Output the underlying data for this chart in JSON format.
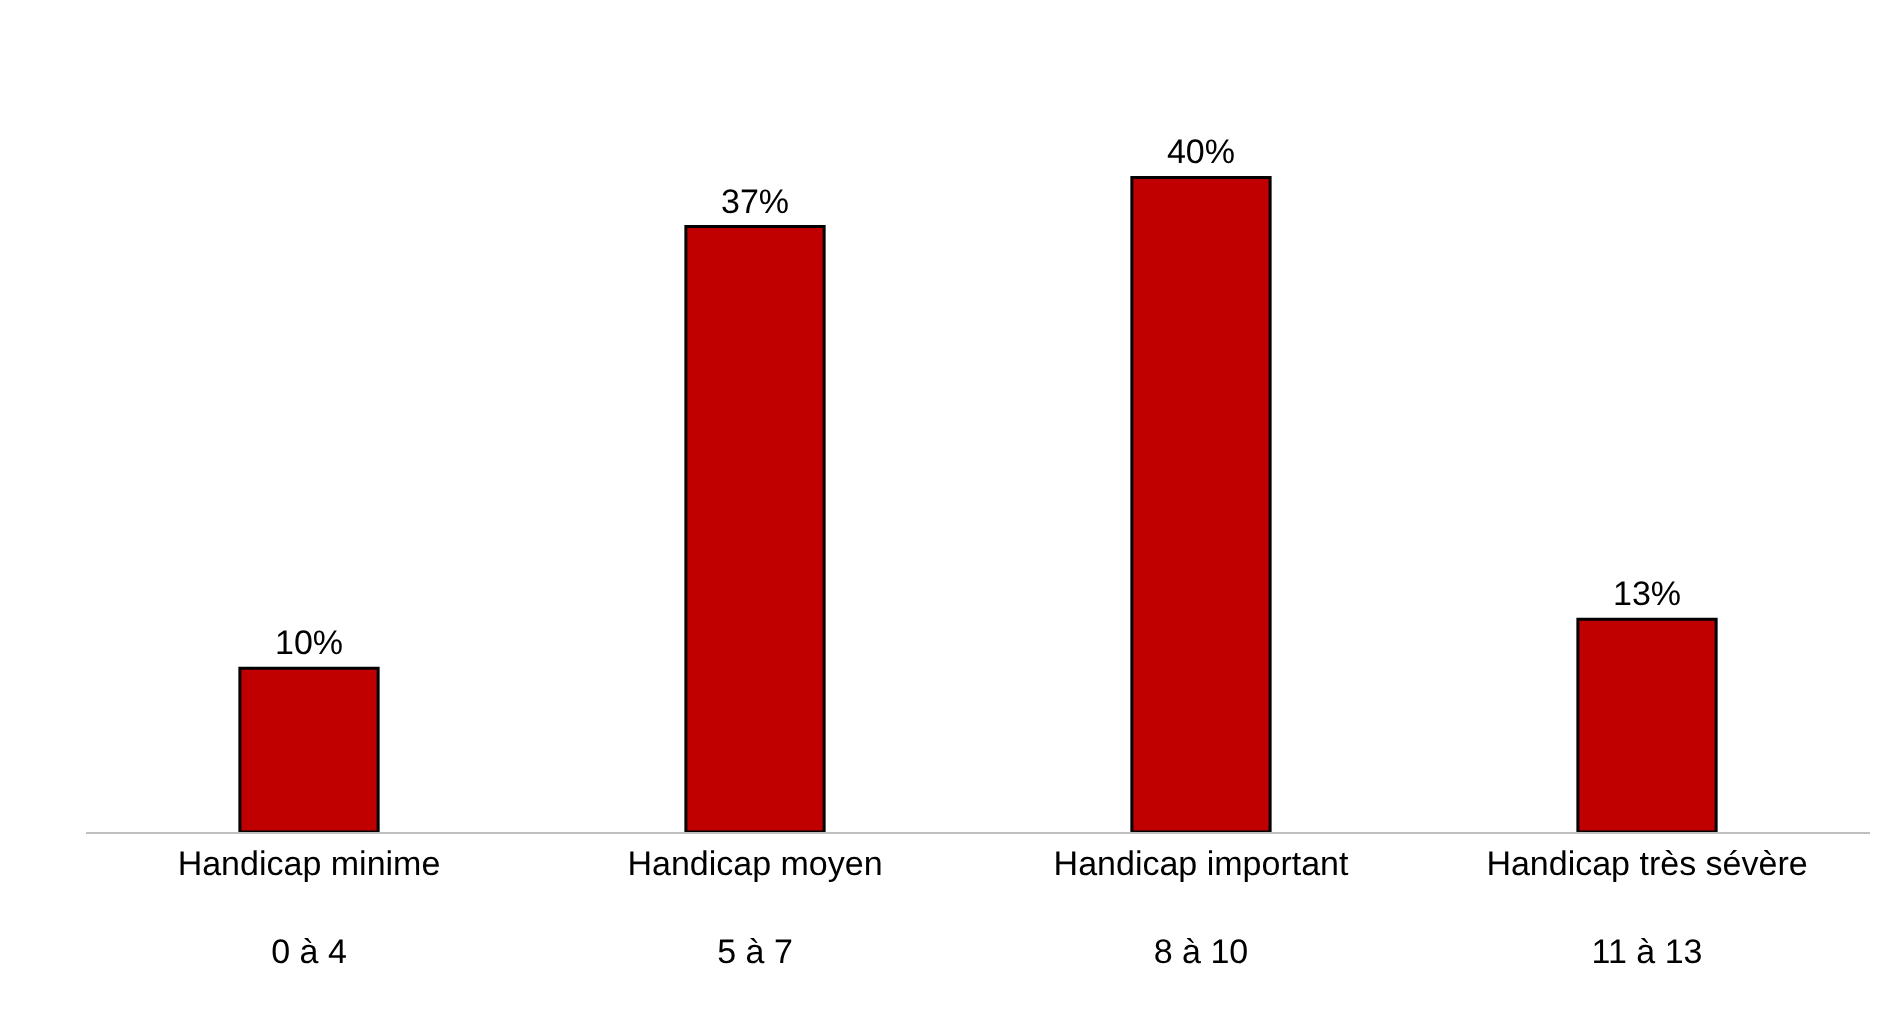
{
  "chart_data": {
    "type": "bar",
    "categories": [
      "Handicap minime\n0 à 4",
      "Handicap moyen\n5 à 7",
      "Handicap important\n8 à 10",
      "Handicap très sévère\n11 à 13"
    ],
    "values": [
      10,
      37,
      40,
      13
    ],
    "value_labels": [
      "10%",
      "37%",
      "40%",
      "13%"
    ],
    "color": "#c00000"
  }
}
